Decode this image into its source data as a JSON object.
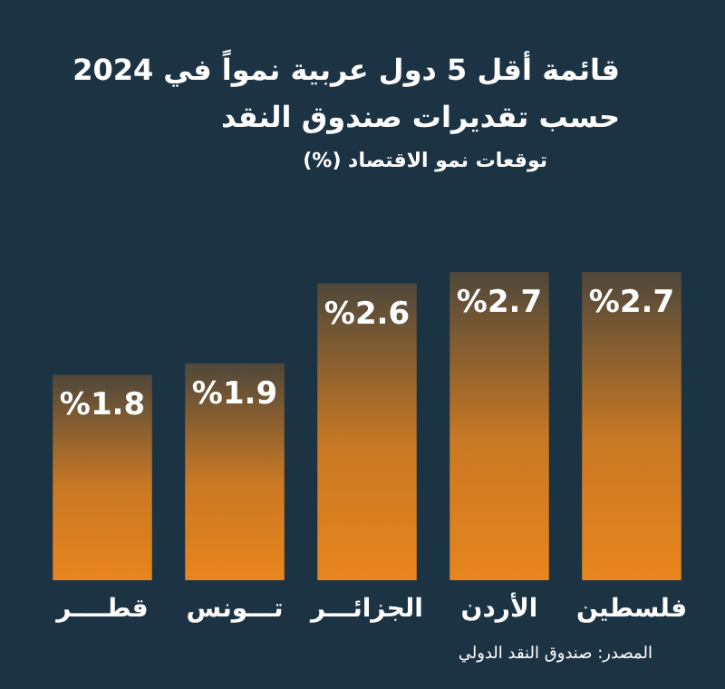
{
  "chart_data": {
    "type": "bar",
    "title": "قائمة أقل 5 دول عربية نمواً في 2024 حسب تقديرات صندوق النقد",
    "subtitle": "توقعات نمو الاقتصاد (%)",
    "categories": [
      "قطــــر",
      "تـــونس",
      "الجزائـــر",
      "الأردن",
      "فلسطين"
    ],
    "values": [
      1.8,
      1.9,
      2.6,
      2.7,
      2.7
    ],
    "value_labels": [
      "%1.8",
      "%1.9",
      "%2.6",
      "%2.7",
      "%2.7"
    ],
    "color": "#e8851e",
    "annotations": [
      "المصدر: صندوق النقد الدولي"
    ]
  }
}
